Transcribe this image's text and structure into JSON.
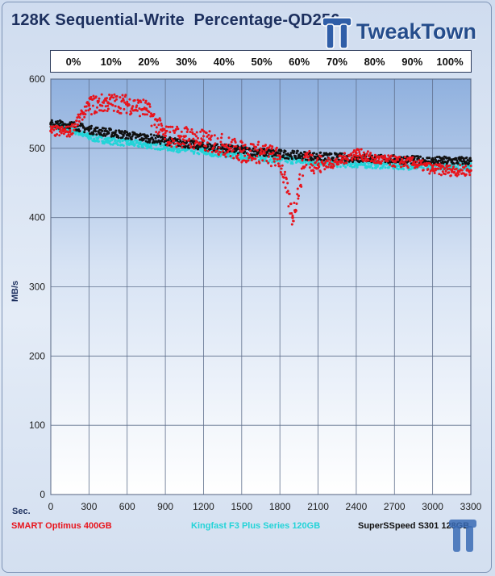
{
  "title": "128K Sequential-Write  Percentage-QD256",
  "logo_text": "TweakTown",
  "percent_labels": [
    "0%",
    "10%",
    "20%",
    "30%",
    "40%",
    "50%",
    "60%",
    "70%",
    "80%",
    "90%",
    "100%"
  ],
  "sec_label": "Sec.",
  "colors": {
    "smart": "#e8141c",
    "kingfast": "#22d4d8",
    "superspeed": "#111111"
  },
  "chart_data": {
    "type": "scatter",
    "title": "128K Sequential-Write  Percentage-QD256",
    "xlabel": "Sec.",
    "ylabel": "MB/s",
    "xlim": [
      0,
      3300
    ],
    "ylim": [
      0,
      600
    ],
    "x_ticks": [
      0,
      300,
      600,
      900,
      1200,
      1500,
      1800,
      2100,
      2400,
      2700,
      3000,
      3300
    ],
    "y_ticks": [
      0,
      100,
      200,
      300,
      400,
      500,
      600
    ],
    "grid": true,
    "legend_position": "bottom",
    "series": [
      {
        "name": "SMART  Optimus 400GB",
        "color": "#e8141c",
        "points": [
          [
            0,
            525
          ],
          [
            150,
            524
          ],
          [
            300,
            562
          ],
          [
            450,
            566
          ],
          [
            600,
            564
          ],
          [
            750,
            557
          ],
          [
            900,
            518
          ],
          [
            1050,
            517
          ],
          [
            1200,
            511
          ],
          [
            1350,
            505
          ],
          [
            1500,
            495
          ],
          [
            1650,
            494
          ],
          [
            1800,
            485
          ],
          [
            1900,
            400
          ],
          [
            2000,
            488
          ],
          [
            2100,
            476
          ],
          [
            2250,
            480
          ],
          [
            2400,
            493
          ],
          [
            2550,
            484
          ],
          [
            2700,
            481
          ],
          [
            2850,
            479
          ],
          [
            3000,
            470
          ],
          [
            3150,
            468
          ],
          [
            3300,
            468
          ]
        ]
      },
      {
        "name": "Kingfast  F3 Plus Series 120GB",
        "color": "#22d4d8",
        "points": [
          [
            0,
            531
          ],
          [
            150,
            529
          ],
          [
            300,
            516
          ],
          [
            450,
            511
          ],
          [
            600,
            508
          ],
          [
            750,
            505
          ],
          [
            900,
            502
          ],
          [
            1050,
            498
          ],
          [
            1200,
            495
          ],
          [
            1350,
            492
          ],
          [
            1500,
            489
          ],
          [
            1650,
            486
          ],
          [
            1800,
            484
          ],
          [
            1950,
            482
          ],
          [
            2100,
            480
          ],
          [
            2250,
            478
          ],
          [
            2400,
            477
          ],
          [
            2550,
            476
          ],
          [
            2700,
            475
          ],
          [
            2850,
            474
          ],
          [
            3000,
            474
          ],
          [
            3150,
            474
          ],
          [
            3300,
            474
          ]
        ]
      },
      {
        "name": "SuperSSpeed S301 128GB",
        "color": "#111111",
        "points": [
          [
            0,
            535
          ],
          [
            150,
            534
          ],
          [
            300,
            527
          ],
          [
            450,
            523
          ],
          [
            600,
            519
          ],
          [
            750,
            515
          ],
          [
            900,
            511
          ],
          [
            1050,
            507
          ],
          [
            1200,
            503
          ],
          [
            1350,
            500
          ],
          [
            1500,
            497
          ],
          [
            1650,
            494
          ],
          [
            1800,
            492
          ],
          [
            1950,
            490
          ],
          [
            2100,
            488
          ],
          [
            2250,
            487
          ],
          [
            2400,
            486
          ],
          [
            2550,
            485
          ],
          [
            2700,
            484
          ],
          [
            2850,
            483
          ],
          [
            3000,
            482
          ],
          [
            3150,
            482
          ],
          [
            3300,
            482
          ]
        ]
      }
    ]
  }
}
